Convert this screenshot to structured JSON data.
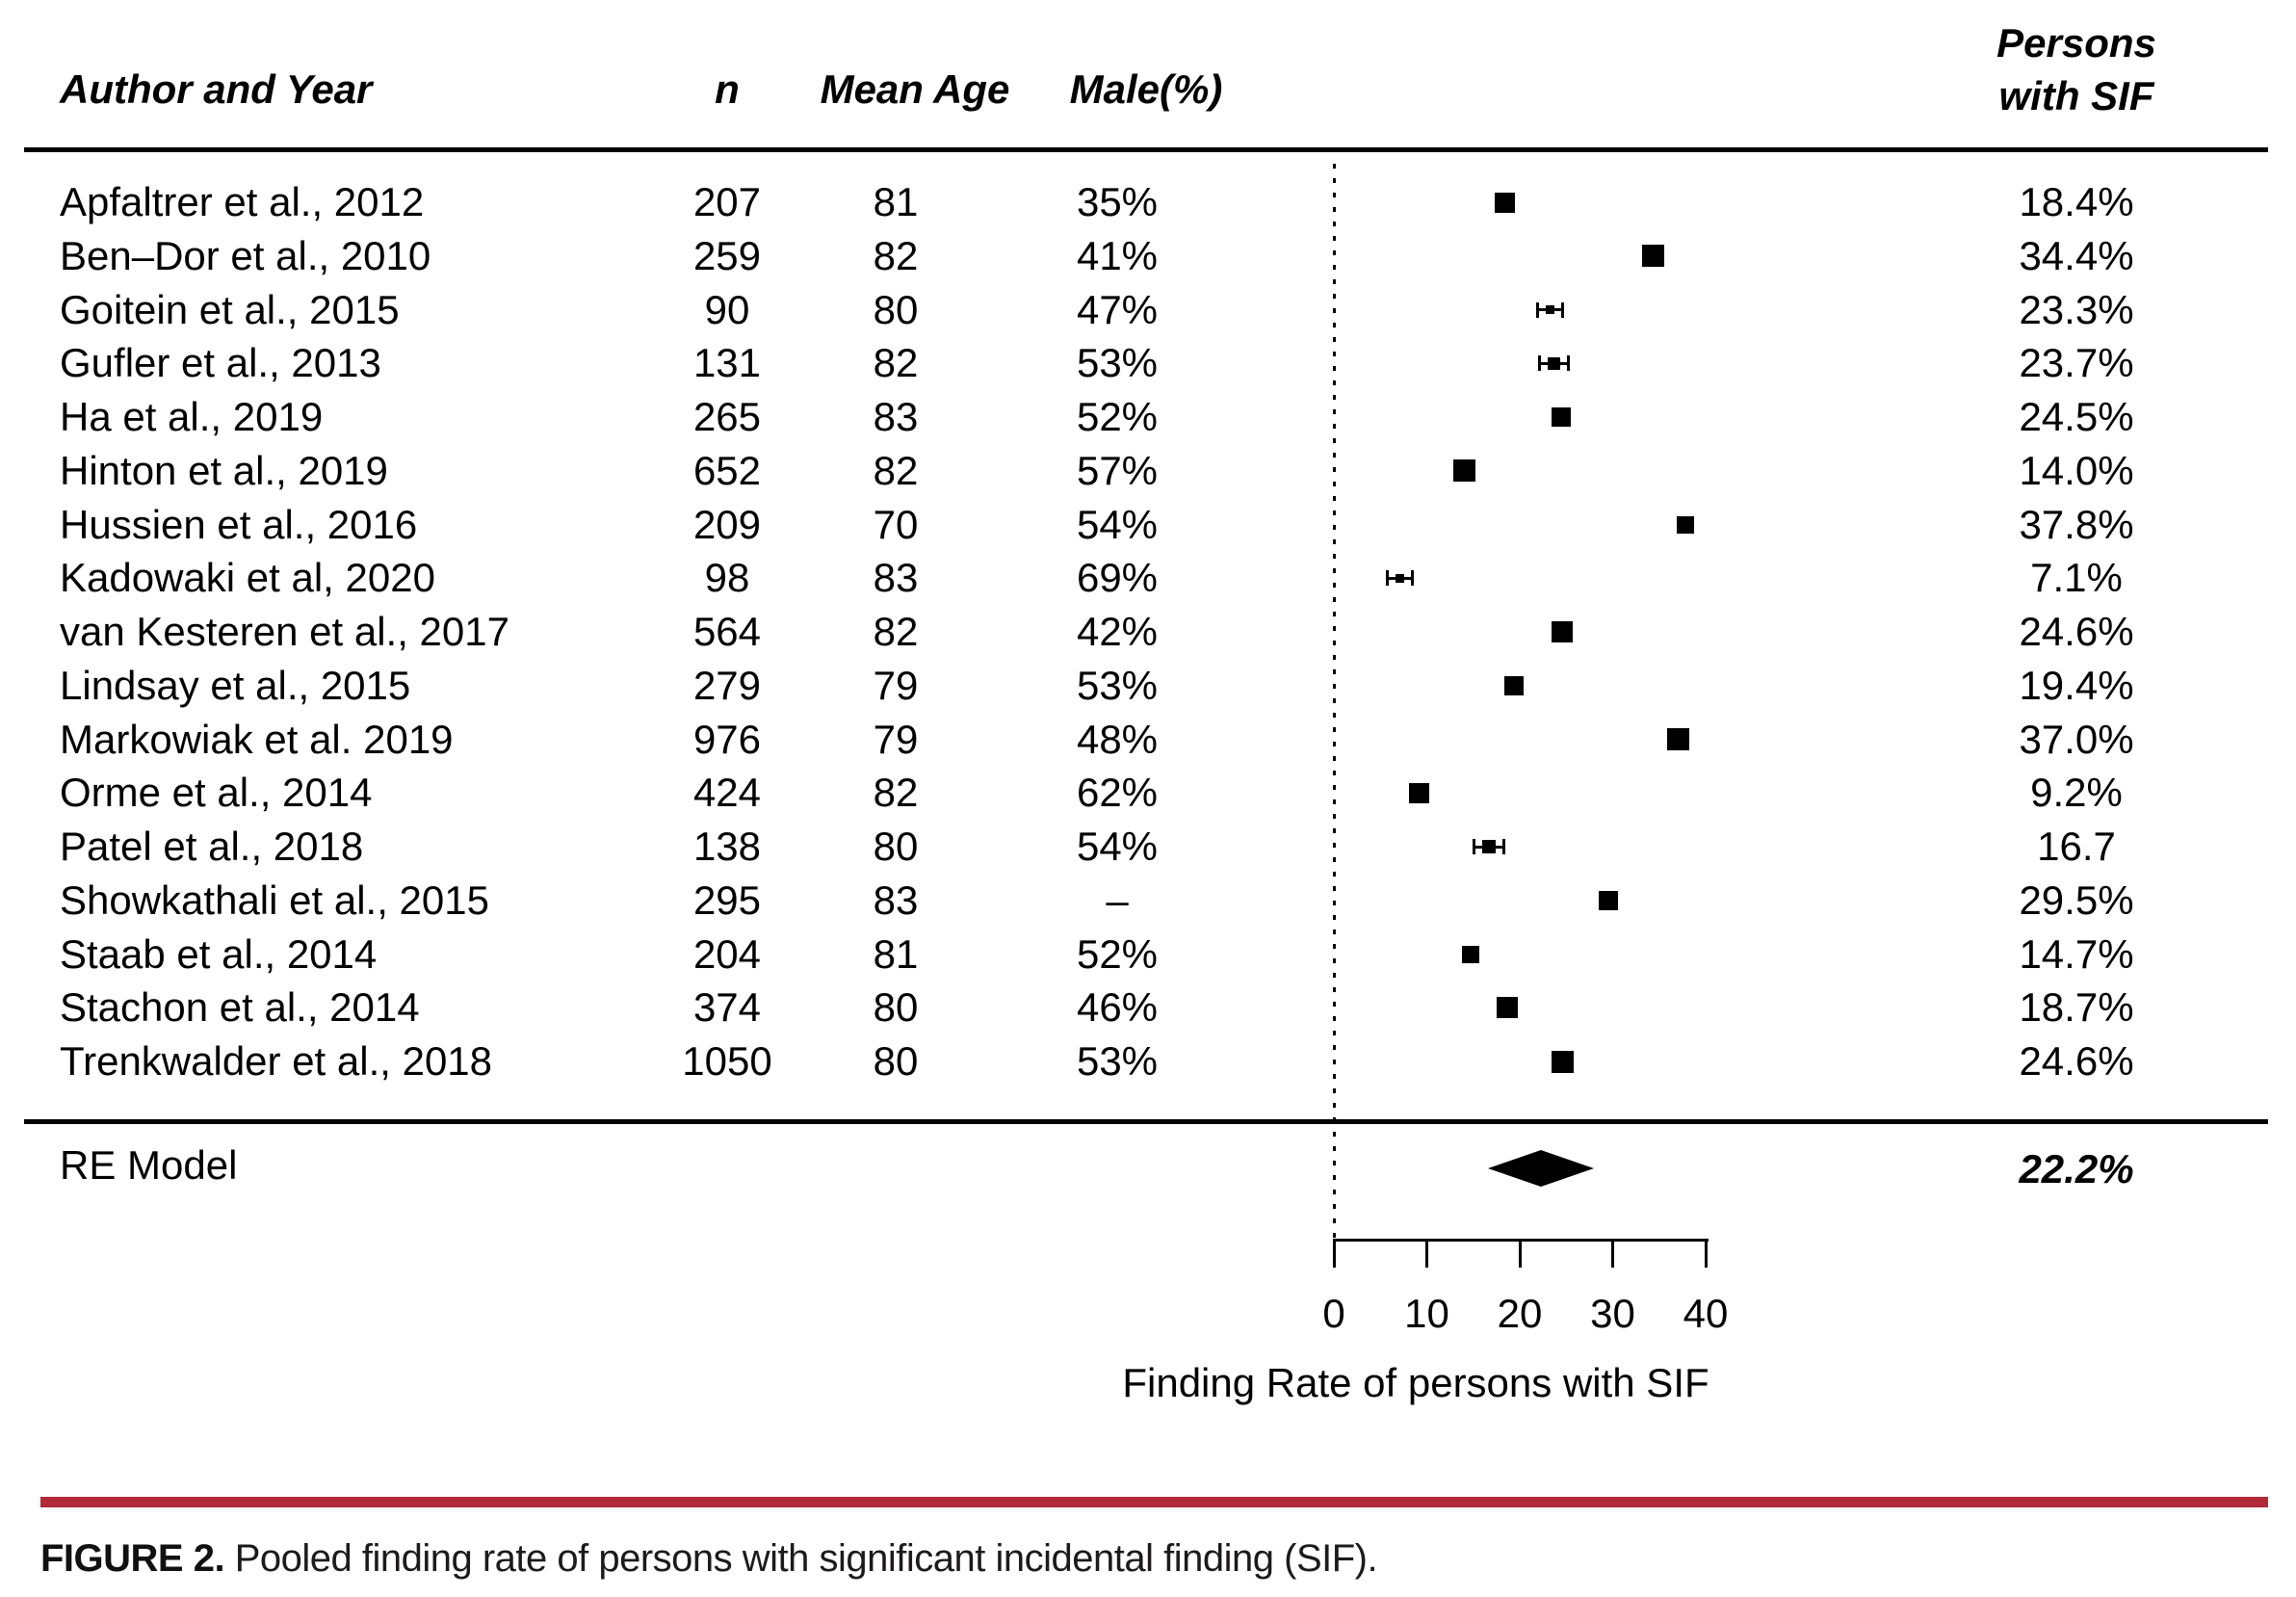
{
  "figure": {
    "header": {
      "author_year": "Author and Year",
      "n": "n",
      "mean_age": "Mean Age",
      "male_pct": "Male(%)",
      "persons_line1": "Persons",
      "persons_line2": "with SIF"
    },
    "summary_row": {
      "label": "RE Model",
      "value": "22.2%"
    },
    "caption": {
      "tag": "FIGURE 2.",
      "text": " Pooled finding rate of persons with significant incidental finding (SIF)."
    },
    "colors": {
      "accent_bar": "#b02a38",
      "ink": "#000000"
    }
  },
  "chart_data": {
    "type": "forest",
    "title": "Pooled finding rate of persons with significant incidental finding (SIF)",
    "xlabel": "Finding Rate of persons with SIF",
    "xlim": [
      0,
      40
    ],
    "x_ticks": [
      0,
      10,
      20,
      30,
      40
    ],
    "grid": false,
    "reference_line_x": 0,
    "columns": [
      "Author and Year",
      "n",
      "Mean Age",
      "Male(%)",
      "Persons with SIF"
    ],
    "studies": [
      {
        "author": "Apfaltrer et al., 2012",
        "n": "207",
        "mean_age": "81",
        "male": "35%",
        "rate": 18.4,
        "rate_label": "18.4%",
        "marker_px": 21,
        "ci_caps": false
      },
      {
        "author": "Ben–Dor et al., 2010",
        "n": "259",
        "mean_age": "82",
        "male": "41%",
        "rate": 34.4,
        "rate_label": "34.4%",
        "marker_px": 23,
        "ci_caps": false
      },
      {
        "author": "Goitein et al., 2015",
        "n": "90",
        "mean_age": "80",
        "male": "47%",
        "rate": 23.3,
        "rate_label": "23.3%",
        "marker_px": 9,
        "ci_caps": true
      },
      {
        "author": "Gufler et al., 2013",
        "n": "131",
        "mean_age": "82",
        "male": "53%",
        "rate": 23.7,
        "rate_label": "23.7%",
        "marker_px": 13,
        "ci_caps": true
      },
      {
        "author": "Ha et al., 2019",
        "n": "265",
        "mean_age": "83",
        "male": "52%",
        "rate": 24.5,
        "rate_label": "24.5%",
        "marker_px": 20,
        "ci_caps": false
      },
      {
        "author": "Hinton et al., 2019",
        "n": "652",
        "mean_age": "82",
        "male": "57%",
        "rate": 14.0,
        "rate_label": "14.0%",
        "marker_px": 23,
        "ci_caps": false
      },
      {
        "author": "Hussien et al., 2016",
        "n": "209",
        "mean_age": "70",
        "male": "54%",
        "rate": 37.8,
        "rate_label": "37.8%",
        "marker_px": 18,
        "ci_caps": false
      },
      {
        "author": "Kadowaki et al, 2020",
        "n": "98",
        "mean_age": "83",
        "male": "69%",
        "rate": 7.1,
        "rate_label": "7.1%",
        "marker_px": 9,
        "ci_caps": true
      },
      {
        "author": "van Kesteren et al., 2017",
        "n": "564",
        "mean_age": "82",
        "male": "42%",
        "rate": 24.6,
        "rate_label": "24.6%",
        "marker_px": 22,
        "ci_caps": false
      },
      {
        "author": "Lindsay et al., 2015",
        "n": "279",
        "mean_age": "79",
        "male": "53%",
        "rate": 19.4,
        "rate_label": "19.4%",
        "marker_px": 20,
        "ci_caps": false
      },
      {
        "author": "Markowiak et al. 2019",
        "n": "976",
        "mean_age": "79",
        "male": "48%",
        "rate": 37.0,
        "rate_label": "37.0%",
        "marker_px": 23,
        "ci_caps": false
      },
      {
        "author": "Orme et al., 2014",
        "n": "424",
        "mean_age": "82",
        "male": "62%",
        "rate": 9.2,
        "rate_label": "9.2%",
        "marker_px": 21,
        "ci_caps": false
      },
      {
        "author": "Patel et al., 2018",
        "n": "138",
        "mean_age": "80",
        "male": "54%",
        "rate": 16.7,
        "rate_label": "16.7",
        "marker_px": 14,
        "ci_caps": true
      },
      {
        "author": "Showkathali et al., 2015",
        "n": "295",
        "mean_age": "83",
        "male": "–",
        "rate": 29.5,
        "rate_label": "29.5%",
        "marker_px": 20,
        "ci_caps": false
      },
      {
        "author": "Staab et al., 2014",
        "n": "204",
        "mean_age": "81",
        "male": "52%",
        "rate": 14.7,
        "rate_label": "14.7%",
        "marker_px": 18,
        "ci_caps": false
      },
      {
        "author": "Stachon et al., 2014",
        "n": "374",
        "mean_age": "80",
        "male": "46%",
        "rate": 18.7,
        "rate_label": "18.7%",
        "marker_px": 22,
        "ci_caps": false
      },
      {
        "author": "Trenkwalder et al., 2018",
        "n": "1050",
        "mean_age": "80",
        "male": "53%",
        "rate": 24.6,
        "rate_label": "24.6%",
        "marker_px": 23,
        "ci_caps": false
      }
    ],
    "summary": {
      "label": "RE Model",
      "rate": 22.2,
      "rate_label": "22.2%",
      "diamond_halfwidth_units": 4.5
    }
  }
}
